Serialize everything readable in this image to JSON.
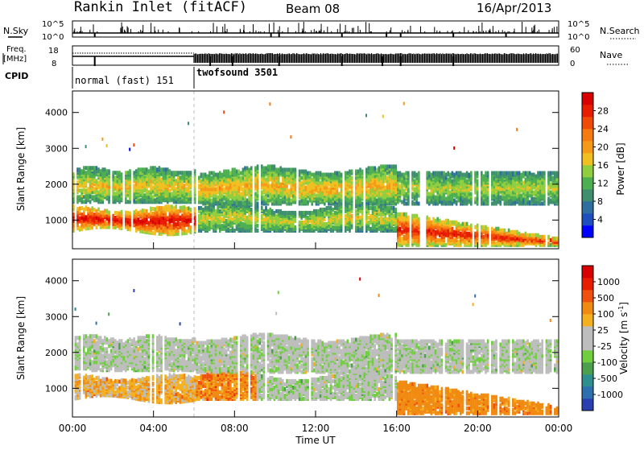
{
  "header": {
    "station": "Rankin Inlet (fitACF)",
    "beam": "Beam 08",
    "date": "16/Apr/2013"
  },
  "top_panels": {
    "nsky_label": "N.Sky",
    "nsearch_label": "N.Search",
    "nsky_ticks": [
      "10^5",
      "10^0"
    ],
    "nsearch_ticks": [
      "10^5",
      "10^0"
    ],
    "freq_label_1": "Freq.",
    "freq_label_2": "[MHz]",
    "freq_ticks": [
      "18",
      "8"
    ],
    "nave_label": "Nave",
    "nave_ticks": [
      "60",
      "0"
    ],
    "cpid_label": "CPID",
    "cpid_modes": [
      {
        "name": "normal (fast) 151",
        "start_hour": 0,
        "end_hour": 6
      },
      {
        "name": "twofsound 3501",
        "start_hour": 6,
        "end_hour": 24
      }
    ]
  },
  "colors": {
    "power_scale": [
      "#0000ff",
      "#1f4fbf",
      "#2f6f9f",
      "#3f8f6f",
      "#4caf50",
      "#8fcf3f",
      "#f0c020",
      "#f59a18",
      "#f57a10",
      "#f04a08",
      "#e81c00",
      "#d80000"
    ],
    "velocity_scale": [
      "#2a3fb0",
      "#2f6faf",
      "#2f8f8f",
      "#4c9f4c",
      "#6fcf3f",
      "#bdbdbd",
      "#bdbdbd",
      "#f5b01f",
      "#f08a10",
      "#f05010",
      "#e81c00",
      "#d80000"
    ],
    "background": "#ffffff"
  },
  "chart_data": [
    {
      "type": "heatmap",
      "panel": "power",
      "xlabel": "",
      "ylabel": "Slant Range [km]",
      "colorbar_label": "Power [dB]",
      "xlim": [
        0,
        24
      ],
      "ylim": [
        200,
        4600
      ],
      "y_ticks": [
        "1000",
        "2000",
        "3000",
        "4000"
      ],
      "colorbar_ticks": [
        "4",
        "8",
        "12",
        "16",
        "20",
        "24",
        "28"
      ],
      "echo_bands": [
        {
          "name_desc": "lower band",
          "x_start": 0,
          "x_end": 6,
          "y_low": 600,
          "y_high": 1300,
          "value_center": 28
        },
        {
          "name_desc": "upper band",
          "x_start": 0,
          "x_end": 6,
          "y_low": 1500,
          "y_high": 2400,
          "value_center": 18
        },
        {
          "name_desc": "mid band",
          "x_start": 6,
          "x_end": 16,
          "y_low": 700,
          "y_high": 2400,
          "value_center": 16
        },
        {
          "name_desc": "evening band",
          "x_start": 16,
          "x_end": 24,
          "y_low": 250,
          "y_high": 1200,
          "value_center": 26
        }
      ]
    },
    {
      "type": "heatmap",
      "panel": "velocity",
      "xlabel": "Time UT",
      "ylabel": "Slant Range [km]",
      "colorbar_label": "Velocity [m s^-1]",
      "xlim": [
        0,
        24
      ],
      "ylim": [
        200,
        4600
      ],
      "y_ticks": [
        "1000",
        "2000",
        "3000",
        "4000"
      ],
      "x_ticks": [
        "00:00",
        "04:00",
        "08:00",
        "12:00",
        "16:00",
        "20:00",
        "00:00"
      ],
      "colorbar_ticks": [
        "1000",
        "500",
        "100",
        "25",
        "-25",
        "-100",
        "-500",
        "-1000"
      ]
    }
  ]
}
